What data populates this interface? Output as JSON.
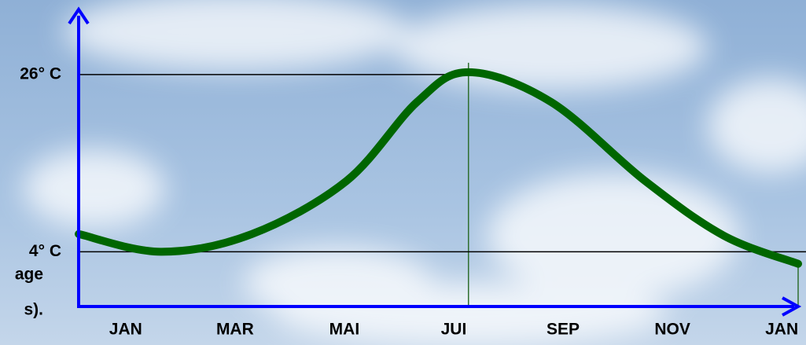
{
  "chart_data": {
    "type": "line",
    "x": [
      0.14,
      1.65,
      3.31,
      5.04,
      6.33,
      7.27,
      8.78,
      10.5,
      11.94,
      13.3
    ],
    "values": [
      6.2,
      4,
      6.2,
      12.8,
      22.6,
      26.3,
      22.6,
      12.8,
      6.0,
      2.5
    ],
    "color": "#006600",
    "xlim": [
      0.14,
      13.3
    ],
    "xticks": [
      {
        "value": 1,
        "label": "JAN"
      },
      {
        "value": 3,
        "label": "MAR"
      },
      {
        "value": 5,
        "label": "MAI"
      },
      {
        "value": 7,
        "label": "JUI"
      },
      {
        "value": 9,
        "label": "SEP"
      },
      {
        "value": 11,
        "label": "NOV"
      },
      {
        "value": 13,
        "label": "JAN"
      }
    ],
    "ylim": [
      -2.8,
      33.8
    ],
    "yticks": [
      {
        "value": 4,
        "label": "4° C"
      },
      {
        "value": 26,
        "label": "26° C"
      }
    ],
    "annotations": [
      "age",
      "s)."
    ]
  }
}
